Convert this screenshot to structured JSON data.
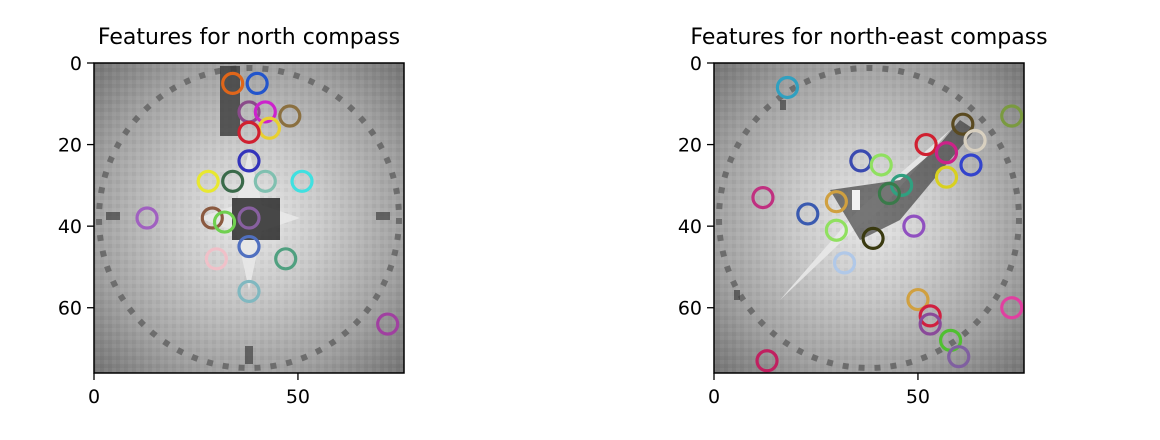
{
  "chart_data": [
    {
      "type": "scatter",
      "title": "Features for north compass",
      "xlabel": "",
      "ylabel": "",
      "xlim": [
        0,
        76
      ],
      "ylim": [
        76,
        0
      ],
      "x_ticks": [
        0,
        50
      ],
      "y_ticks": [
        0,
        20,
        40,
        60
      ],
      "grid": false,
      "background": "grayscale compass image",
      "points": [
        {
          "x": 34,
          "y": 5,
          "color": "#e0661a"
        },
        {
          "x": 40,
          "y": 5,
          "color": "#2255cc"
        },
        {
          "x": 38,
          "y": 12,
          "color": "#8a4a8a"
        },
        {
          "x": 42,
          "y": 12,
          "color": "#cc22cc"
        },
        {
          "x": 48,
          "y": 13,
          "color": "#8b7040"
        },
        {
          "x": 43,
          "y": 16,
          "color": "#e8d030"
        },
        {
          "x": 38,
          "y": 17,
          "color": "#d02030"
        },
        {
          "x": 38,
          "y": 24,
          "color": "#3333bb"
        },
        {
          "x": 28,
          "y": 29,
          "color": "#e8e830"
        },
        {
          "x": 34,
          "y": 29,
          "color": "#3a6a4a"
        },
        {
          "x": 42,
          "y": 29,
          "color": "#80c0b0"
        },
        {
          "x": 51,
          "y": 29,
          "color": "#40e0e0"
        },
        {
          "x": 13,
          "y": 38,
          "color": "#a060c0"
        },
        {
          "x": 29,
          "y": 38,
          "color": "#8b5a40"
        },
        {
          "x": 32,
          "y": 39,
          "color": "#70d050"
        },
        {
          "x": 38,
          "y": 38,
          "color": "#8860a0"
        },
        {
          "x": 38,
          "y": 45,
          "color": "#5070c0"
        },
        {
          "x": 30,
          "y": 48,
          "color": "#f0c0c8"
        },
        {
          "x": 47,
          "y": 48,
          "color": "#50a080"
        },
        {
          "x": 38,
          "y": 56,
          "color": "#80b8c0"
        },
        {
          "x": 72,
          "y": 64,
          "color": "#a040a0"
        }
      ]
    },
    {
      "type": "scatter",
      "title": "Features for north-east compass",
      "xlabel": "",
      "ylabel": "",
      "xlim": [
        0,
        76
      ],
      "ylim": [
        76,
        0
      ],
      "x_ticks": [
        0,
        50
      ],
      "y_ticks": [
        0,
        20,
        40,
        60
      ],
      "grid": false,
      "background": "grayscale compass image",
      "points": [
        {
          "x": 18,
          "y": 6,
          "color": "#30a0c0"
        },
        {
          "x": 73,
          "y": 13,
          "color": "#7a9a40"
        },
        {
          "x": 61,
          "y": 15,
          "color": "#5a4a20"
        },
        {
          "x": 64,
          "y": 19,
          "color": "#d8d0c0"
        },
        {
          "x": 52,
          "y": 20,
          "color": "#d02030"
        },
        {
          "x": 57,
          "y": 22,
          "color": "#cc2288"
        },
        {
          "x": 63,
          "y": 25,
          "color": "#3344cc"
        },
        {
          "x": 36,
          "y": 24,
          "color": "#3a4ab0"
        },
        {
          "x": 41,
          "y": 25,
          "color": "#90e060"
        },
        {
          "x": 57,
          "y": 28,
          "color": "#d8d020"
        },
        {
          "x": 46,
          "y": 30,
          "color": "#30a080"
        },
        {
          "x": 43,
          "y": 32,
          "color": "#3a7a4a"
        },
        {
          "x": 12,
          "y": 33,
          "color": "#c03080"
        },
        {
          "x": 30,
          "y": 34,
          "color": "#d0a040"
        },
        {
          "x": 23,
          "y": 37,
          "color": "#3a5ab0"
        },
        {
          "x": 30,
          "y": 41,
          "color": "#90e060"
        },
        {
          "x": 39,
          "y": 43,
          "color": "#3a3a10"
        },
        {
          "x": 49,
          "y": 40,
          "color": "#9050c0"
        },
        {
          "x": 32,
          "y": 49,
          "color": "#b0c8e8"
        },
        {
          "x": 50,
          "y": 58,
          "color": "#d0a040"
        },
        {
          "x": 53,
          "y": 62,
          "color": "#d02040"
        },
        {
          "x": 53,
          "y": 64,
          "color": "#8a4a9a"
        },
        {
          "x": 73,
          "y": 60,
          "color": "#e040a0"
        },
        {
          "x": 58,
          "y": 68,
          "color": "#50c030"
        },
        {
          "x": 60,
          "y": 72,
          "color": "#8060a0"
        },
        {
          "x": 13,
          "y": 73,
          "color": "#c02060"
        }
      ]
    }
  ]
}
